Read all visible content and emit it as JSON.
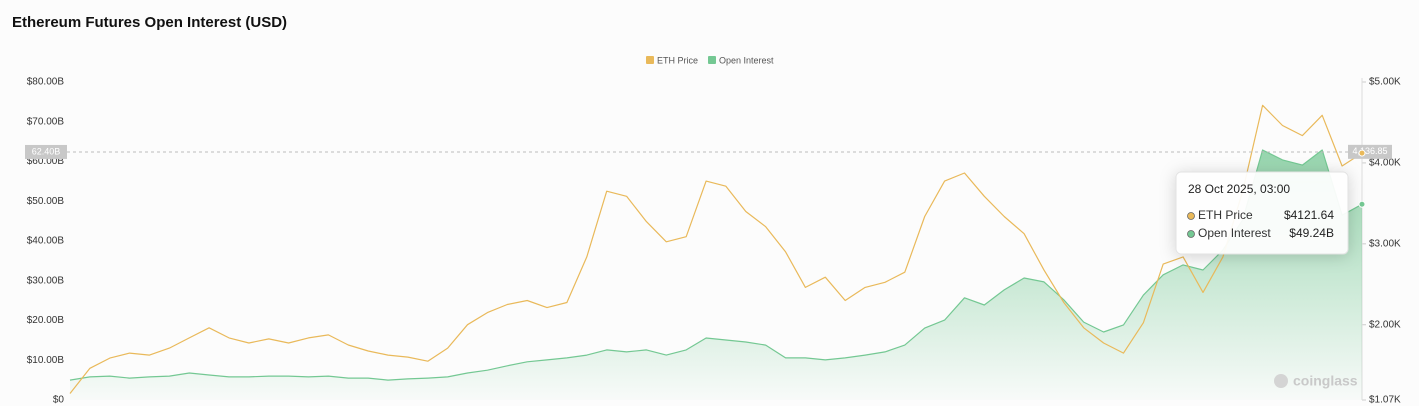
{
  "chart_data": {
    "type": "line",
    "title": "Ethereum Futures Open Interest (USD)",
    "series": [
      {
        "name": "ETH Price",
        "color": "#e9b95a",
        "axis": "y2",
        "values": [
          1150,
          1462,
          1588,
          1650,
          1625,
          1712,
          1838,
          1962,
          1838,
          1775,
          1825,
          1775,
          1838,
          1875,
          1750,
          1675,
          1625,
          1600,
          1550,
          1712,
          2000,
          2150,
          2250,
          2300,
          2212,
          2275,
          2838,
          3650,
          3588,
          3275,
          3025,
          3088,
          3775,
          3712,
          3400,
          3212,
          2900,
          2462,
          2588,
          2300,
          2462,
          2525,
          2650,
          3338,
          3775,
          3875,
          3588,
          3338,
          3125,
          2675,
          2275,
          1962,
          1775,
          1650,
          2025,
          2750,
          2838,
          2400,
          2838,
          3650,
          4712,
          4462,
          4338,
          4588,
          3962,
          4121.64
        ]
      },
      {
        "name": "Open Interest",
        "color": "#74c893",
        "area": true,
        "values": [
          5000000000.0,
          5800000000.0,
          6000000000.0,
          5500000000.0,
          5800000000.0,
          6000000000.0,
          6800000000.0,
          6300000000.0,
          5800000000.0,
          5800000000.0,
          6000000000.0,
          6000000000.0,
          5800000000.0,
          6000000000.0,
          5500000000.0,
          5500000000.0,
          5000000000.0,
          5300000000.0,
          5500000000.0,
          5800000000.0,
          6800000000.0,
          7500000000.0,
          8600000000.0,
          9600000000.0,
          10100000000.0,
          10600000000.0,
          11300000000.0,
          12600000000.0,
          12100000000.0,
          12600000000.0,
          11300000000.0,
          12600000000.0,
          15600000000.0,
          15100000000.0,
          14600000000.0,
          13800000000.0,
          10600000000.0,
          10600000000.0,
          10100000000.0,
          10600000000.0,
          11300000000.0,
          12100000000.0,
          13800000000.0,
          18100000000.0,
          20100000000.0,
          25700000000.0,
          23900000000.0,
          27700000000.0,
          30700000000.0,
          29700000000.0,
          25200000000.0,
          19600000000.0,
          17100000000.0,
          18900000000.0,
          26400000000.0,
          31500000000.0,
          34000000000.0,
          32700000000.0,
          37700000000.0,
          45300000000.0,
          62900000000.0,
          60400000000.0,
          59100000000.0,
          62900000000.0,
          46500000000.0,
          49240000000.0
        ]
      }
    ],
    "ylim": [
      0,
      80000000000
    ],
    "yticks": [
      {
        "value": 0,
        "label": "$0"
      },
      {
        "value": 10000000000,
        "label": "$10.00B"
      },
      {
        "value": 20000000000,
        "label": "$20.00B"
      },
      {
        "value": 30000000000,
        "label": "$30.00B"
      },
      {
        "value": 40000000000,
        "label": "$40.00B"
      },
      {
        "value": 50000000000,
        "label": "$50.00B"
      },
      {
        "value": 60000000000,
        "label": "$60.00B"
      },
      {
        "value": 70000000000,
        "label": "$70.00B"
      },
      {
        "value": 80000000000,
        "label": "$80.00B"
      }
    ],
    "y2lim": [
      1070,
      5000
    ],
    "y2ticks": [
      {
        "value": 1070,
        "label": "$1.07K"
      },
      {
        "value": 2000,
        "label": "$2.00K"
      },
      {
        "value": 3000,
        "label": "$3.00K"
      },
      {
        "value": 4000,
        "label": "$4.00K"
      },
      {
        "value": 5000,
        "label": "$5.00K"
      }
    ],
    "crosshair": {
      "y": {
        "value": 62400000000,
        "label": "62.40B"
      },
      "y2": {
        "value": 4136.85,
        "label": "4,136.85"
      }
    },
    "tooltip": {
      "title": "28 Oct 2025, 03:00",
      "items": [
        {
          "value": 4121.64,
          "label": "$4121.64"
        },
        {
          "value": 49240000000,
          "label": "$49.24B"
        }
      ]
    },
    "watermark": "coinglass"
  }
}
